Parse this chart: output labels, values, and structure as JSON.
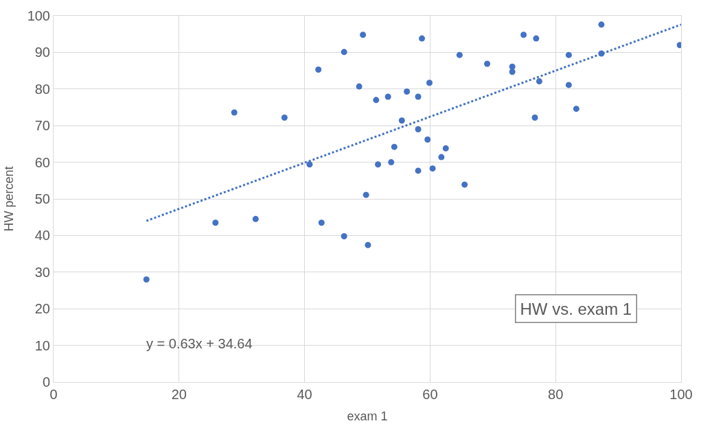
{
  "chart_data": {
    "type": "scatter",
    "title": "HW vs. exam 1",
    "xlabel": "exam 1",
    "ylabel": "HW percent",
    "annotations": [
      "y = 0.63x + 34.64"
    ],
    "xlim": [
      0,
      100
    ],
    "xticks": [
      0,
      20,
      40,
      60,
      80,
      100
    ],
    "ylim": [
      0,
      100
    ],
    "yticks": [
      0,
      10,
      20,
      30,
      40,
      50,
      60,
      70,
      80,
      90,
      100
    ],
    "grid": true,
    "marker": "circle",
    "series": [
      {
        "color": "#4472c4",
        "x": [
          49.3,
          46.3,
          42.2,
          48.7,
          28.8,
          36.8,
          40.8,
          49.8,
          25.8,
          32.2,
          42.7,
          46.3,
          50.1,
          14.8,
          58.7,
          64.7,
          69.1,
          73.1,
          73.1,
          74.9,
          76.9,
          87.3,
          99.8,
          82.1,
          87.3,
          77.4,
          82.1,
          83.3,
          76.7,
          59.9,
          51.4,
          53.3,
          56.3,
          58.1,
          55.5,
          58.1,
          59.6,
          54.3,
          62.5,
          61.8,
          51.7,
          53.8,
          58.1,
          60.4,
          65.5
        ],
        "values": [
          94.8,
          90.1,
          85.3,
          80.7,
          73.6,
          72.2,
          59.4,
          51.1,
          43.5,
          44.5,
          43.5,
          39.8,
          37.4,
          28.0,
          93.8,
          89.3,
          86.9,
          86.1,
          84.7,
          94.8,
          93.8,
          97.6,
          92.0,
          89.3,
          89.7,
          82.1,
          81.1,
          74.6,
          72.2,
          81.7,
          77.0,
          77.9,
          79.3,
          77.9,
          71.4,
          69.0,
          66.2,
          64.2,
          63.8,
          61.4,
          59.4,
          60.0,
          57.7,
          58.3,
          53.9
        ]
      },
      {
        "type": "line",
        "color": "#4472c4",
        "line_style": "dotted",
        "marker": "none",
        "x": [
          14.8,
          100
        ],
        "values": [
          44.0,
          97.6
        ]
      }
    ]
  }
}
